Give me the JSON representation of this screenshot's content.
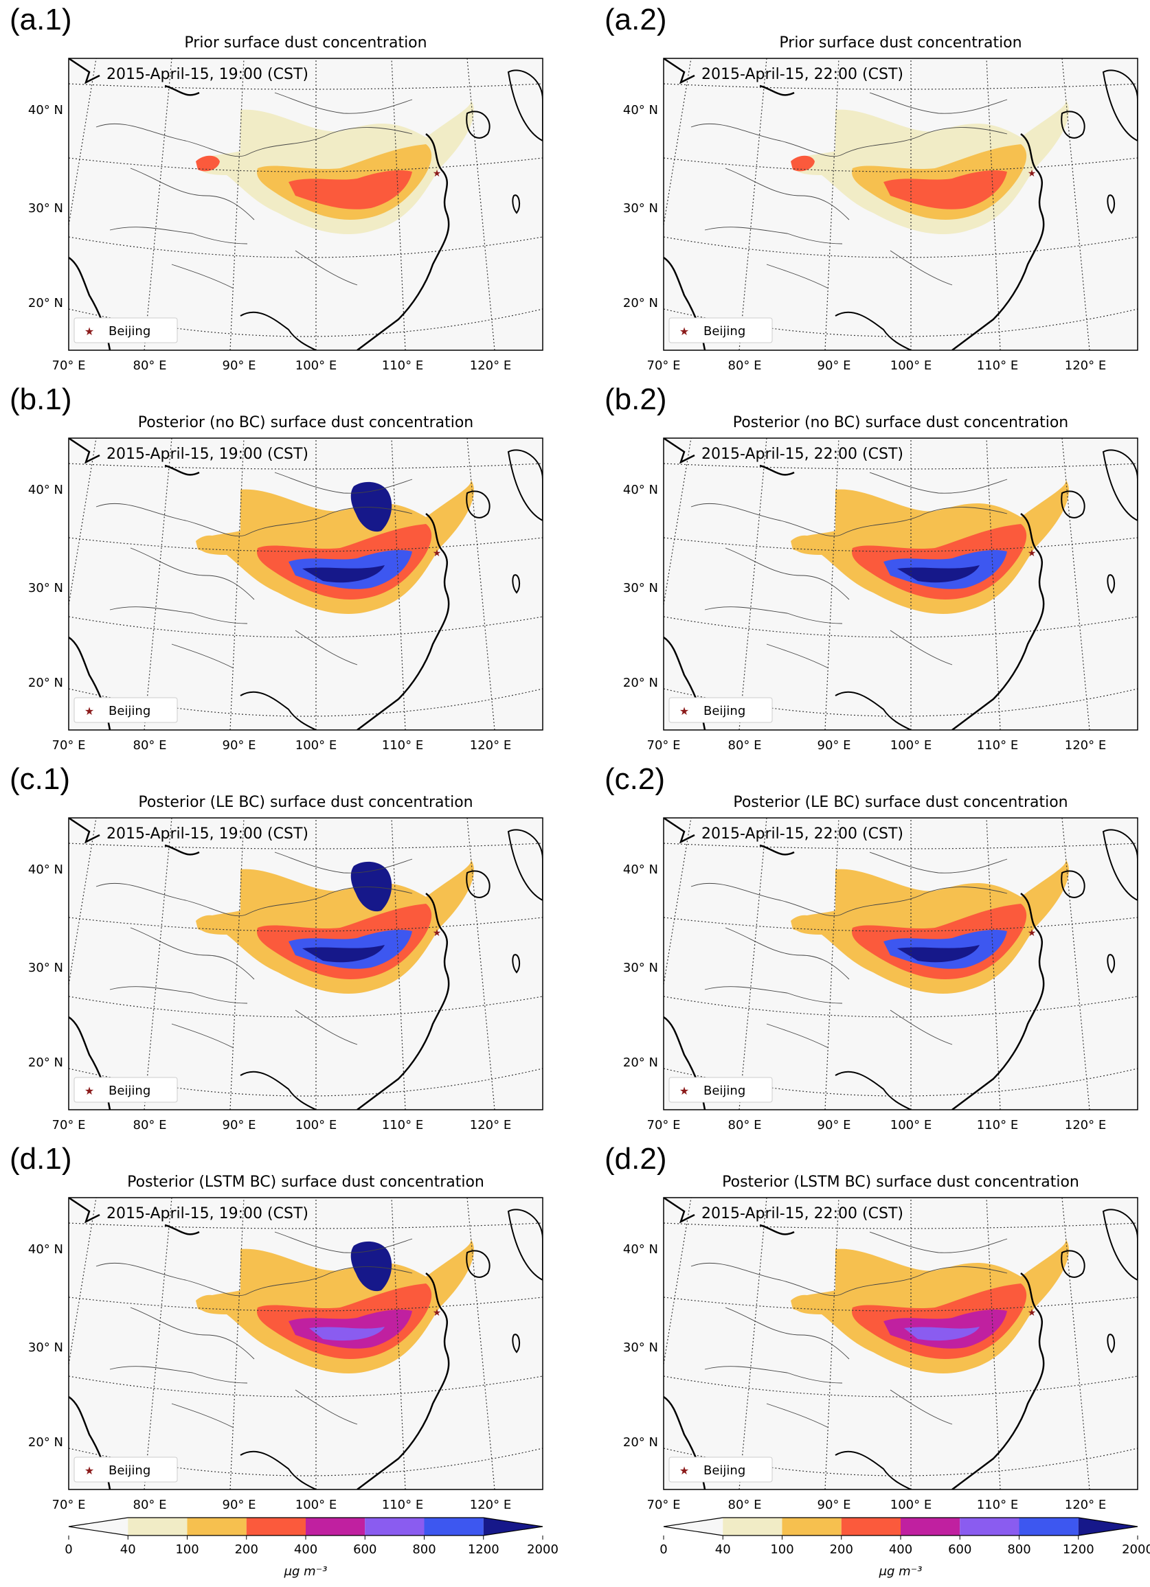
{
  "panels": [
    {
      "id": "a1",
      "letter": "(a.1)",
      "title": "Prior surface dust concentration",
      "timestamp": "2015-April-15, 19:00 (CST)",
      "legend": "Beijing",
      "variant": "prior"
    },
    {
      "id": "a2",
      "letter": "(a.2)",
      "title": "Prior surface dust concentration",
      "timestamp": "2015-April-15, 22:00 (CST)",
      "legend": "Beijing",
      "variant": "prior2"
    },
    {
      "id": "b1",
      "letter": "(b.1)",
      "title": "Posterior (no BC) surface dust concentration",
      "timestamp": "2015-April-15, 19:00 (CST)",
      "legend": "Beijing",
      "variant": "post"
    },
    {
      "id": "b2",
      "letter": "(b.2)",
      "title": "Posterior (no BC) surface dust concentration",
      "timestamp": "2015-April-15, 22:00 (CST)",
      "legend": "Beijing",
      "variant": "post2"
    },
    {
      "id": "c1",
      "letter": "(c.1)",
      "title": "Posterior (LE BC) surface dust concentration",
      "timestamp": "2015-April-15, 19:00 (CST)",
      "legend": "Beijing",
      "variant": "post"
    },
    {
      "id": "c2",
      "letter": "(c.2)",
      "title": "Posterior (LE BC) surface dust concentration",
      "timestamp": "2015-April-15, 22:00 (CST)",
      "legend": "Beijing",
      "variant": "post2"
    },
    {
      "id": "d1",
      "letter": "(d.1)",
      "title": "Posterior (LSTM BC) surface dust concentration",
      "timestamp": "2015-April-15, 19:00 (CST)",
      "legend": "Beijing",
      "variant": "lstm"
    },
    {
      "id": "d2",
      "letter": "(d.2)",
      "title": "Posterior (LSTM BC) surface dust concentration",
      "timestamp": "2015-April-15, 22:00 (CST)",
      "legend": "Beijing",
      "variant": "lstm2"
    }
  ],
  "lat_labels": [
    "40° N",
    "30° N",
    "20° N"
  ],
  "lon_labels": [
    "70° E",
    "80° E",
    "90° E",
    "100° E",
    "110° E",
    "120° E"
  ],
  "colorbar": {
    "ticks": [
      "0",
      "40",
      "100",
      "200",
      "400",
      "600",
      "800",
      "1200",
      "2000"
    ],
    "colors": [
      "#f7f7f7",
      "#f1ecc6",
      "#f6c04f",
      "#fb5a3c",
      "#c020a0",
      "#8a5cf0",
      "#3d57f0",
      "#16188a"
    ],
    "unit": "μg m⁻³"
  }
}
